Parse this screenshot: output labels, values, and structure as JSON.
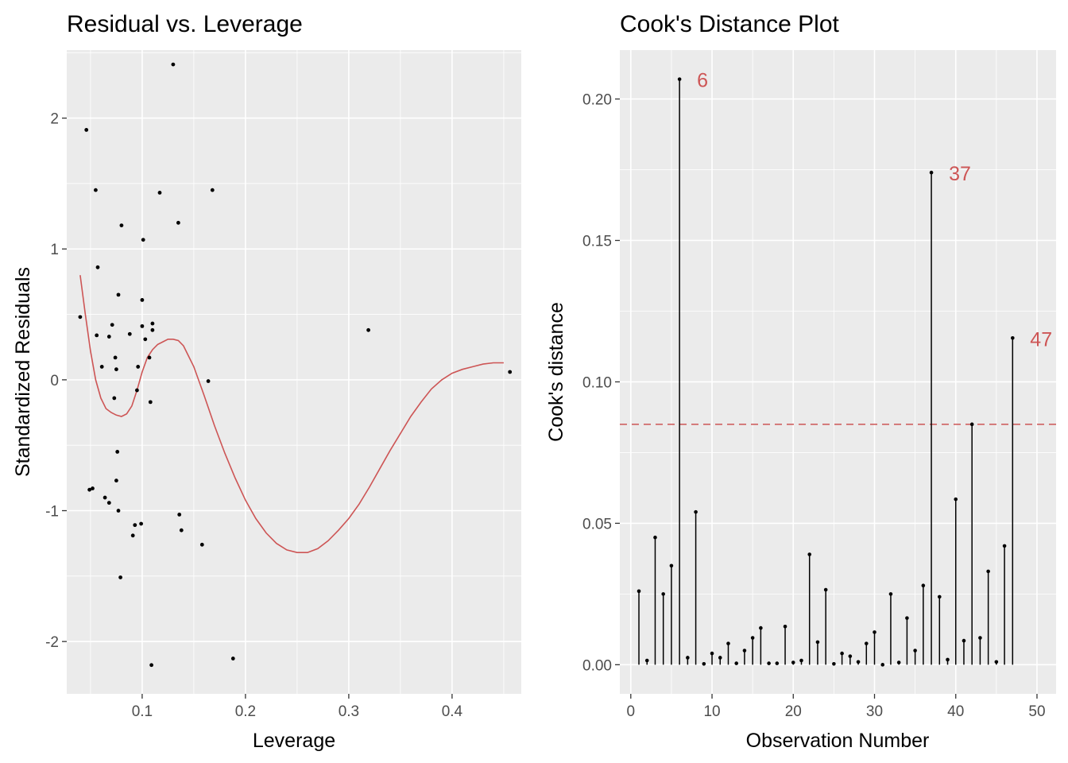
{
  "chart_data": [
    {
      "type": "scatter",
      "title": "Residual vs. Leverage",
      "xlabel": "Leverage",
      "ylabel": "Standardized Residuals",
      "xlim": [
        0.027,
        0.467
      ],
      "ylim": [
        -2.4,
        2.52
      ],
      "xticks": [
        0.1,
        0.2,
        0.3,
        0.4
      ],
      "xtick_labels": [
        "0.1",
        "0.2",
        "0.3",
        "0.4"
      ],
      "yticks": [
        -2,
        -1,
        0,
        1,
        2
      ],
      "ytick_labels": [
        "-2",
        "-1",
        "0",
        "1",
        "2"
      ],
      "grid": true,
      "background": "#EBEBEB",
      "point_color": "#000000",
      "smooth_color": "#CD5555",
      "points": [
        [
          0.04,
          0.48
        ],
        [
          0.046,
          1.91
        ],
        [
          0.049,
          -0.84
        ],
        [
          0.052,
          -0.83
        ],
        [
          0.055,
          1.45
        ],
        [
          0.056,
          0.34
        ],
        [
          0.057,
          0.86
        ],
        [
          0.061,
          0.1
        ],
        [
          0.064,
          -0.9
        ],
        [
          0.068,
          0.33
        ],
        [
          0.068,
          -0.94
        ],
        [
          0.071,
          0.42
        ],
        [
          0.073,
          -0.14
        ],
        [
          0.074,
          0.17
        ],
        [
          0.075,
          0.08
        ],
        [
          0.075,
          -0.77
        ],
        [
          0.076,
          -0.55
        ],
        [
          0.077,
          -1.0
        ],
        [
          0.077,
          0.65
        ],
        [
          0.079,
          -1.51
        ],
        [
          0.08,
          1.18
        ],
        [
          0.088,
          0.35
        ],
        [
          0.091,
          -1.19
        ],
        [
          0.093,
          -1.11
        ],
        [
          0.095,
          -0.08
        ],
        [
          0.096,
          0.1
        ],
        [
          0.099,
          -1.1
        ],
        [
          0.1,
          0.41
        ],
        [
          0.1,
          0.61
        ],
        [
          0.101,
          1.07
        ],
        [
          0.103,
          0.31
        ],
        [
          0.107,
          0.17
        ],
        [
          0.108,
          -0.17
        ],
        [
          0.11,
          0.43
        ],
        [
          0.11,
          0.38
        ],
        [
          0.109,
          -2.18
        ],
        [
          0.117,
          1.43
        ],
        [
          0.13,
          2.41
        ],
        [
          0.135,
          1.2
        ],
        [
          0.136,
          -1.03
        ],
        [
          0.138,
          -1.15
        ],
        [
          0.158,
          -1.26
        ],
        [
          0.164,
          -0.01
        ],
        [
          0.168,
          1.45
        ],
        [
          0.188,
          -2.13
        ],
        [
          0.319,
          0.38
        ],
        [
          0.456,
          0.06
        ]
      ],
      "smooth_line": [
        [
          0.04,
          0.8
        ],
        [
          0.045,
          0.5
        ],
        [
          0.05,
          0.22
        ],
        [
          0.055,
          0.0
        ],
        [
          0.06,
          -0.14
        ],
        [
          0.065,
          -0.22
        ],
        [
          0.07,
          -0.25
        ],
        [
          0.075,
          -0.27
        ],
        [
          0.08,
          -0.28
        ],
        [
          0.085,
          -0.26
        ],
        [
          0.09,
          -0.2
        ],
        [
          0.095,
          -0.08
        ],
        [
          0.1,
          0.06
        ],
        [
          0.105,
          0.17
        ],
        [
          0.11,
          0.23
        ],
        [
          0.115,
          0.27
        ],
        [
          0.12,
          0.29
        ],
        [
          0.125,
          0.31
        ],
        [
          0.13,
          0.31
        ],
        [
          0.135,
          0.3
        ],
        [
          0.14,
          0.26
        ],
        [
          0.15,
          0.1
        ],
        [
          0.16,
          -0.12
        ],
        [
          0.17,
          -0.35
        ],
        [
          0.18,
          -0.56
        ],
        [
          0.19,
          -0.75
        ],
        [
          0.2,
          -0.92
        ],
        [
          0.21,
          -1.06
        ],
        [
          0.22,
          -1.17
        ],
        [
          0.23,
          -1.25
        ],
        [
          0.24,
          -1.3
        ],
        [
          0.25,
          -1.32
        ],
        [
          0.26,
          -1.32
        ],
        [
          0.27,
          -1.29
        ],
        [
          0.28,
          -1.23
        ],
        [
          0.29,
          -1.15
        ],
        [
          0.3,
          -1.06
        ],
        [
          0.31,
          -0.95
        ],
        [
          0.32,
          -0.82
        ],
        [
          0.33,
          -0.68
        ],
        [
          0.34,
          -0.54
        ],
        [
          0.35,
          -0.41
        ],
        [
          0.36,
          -0.28
        ],
        [
          0.37,
          -0.17
        ],
        [
          0.38,
          -0.07
        ],
        [
          0.39,
          0.0
        ],
        [
          0.4,
          0.05
        ],
        [
          0.41,
          0.08
        ],
        [
          0.42,
          0.1
        ],
        [
          0.43,
          0.12
        ],
        [
          0.44,
          0.13
        ],
        [
          0.45,
          0.13
        ]
      ]
    },
    {
      "type": "bar",
      "title": "Cook's Distance Plot",
      "xlabel": "Observation Number",
      "ylabel": "Cook's distance",
      "xlim": [
        -1.35,
        52.35
      ],
      "ylim": [
        -0.0103,
        0.2173
      ],
      "xticks": [
        0,
        10,
        20,
        30,
        40,
        50
      ],
      "xtick_labels": [
        "0",
        "10",
        "20",
        "30",
        "40",
        "50"
      ],
      "yticks": [
        0.0,
        0.05,
        0.1,
        0.15,
        0.2
      ],
      "ytick_labels": [
        "0.00",
        "0.05",
        "0.10",
        "0.15",
        "0.20"
      ],
      "grid": true,
      "background": "#EBEBEB",
      "stem_color": "#000000",
      "threshold": 0.085,
      "threshold_color": "#CD5555",
      "annotation_color": "#CD5555",
      "observations": [
        1,
        2,
        3,
        4,
        5,
        6,
        7,
        8,
        9,
        10,
        11,
        12,
        13,
        14,
        15,
        16,
        17,
        18,
        19,
        20,
        21,
        22,
        23,
        24,
        25,
        26,
        27,
        28,
        29,
        30,
        31,
        32,
        33,
        34,
        35,
        36,
        37,
        38,
        39,
        40,
        41,
        42,
        43,
        44,
        45,
        46,
        47
      ],
      "values": [
        0.026,
        0.0015,
        0.045,
        0.025,
        0.035,
        0.207,
        0.0025,
        0.054,
        0.0003,
        0.004,
        0.0025,
        0.0075,
        0.0005,
        0.005,
        0.0095,
        0.013,
        0.0005,
        0.0005,
        0.0135,
        0.0008,
        0.0015,
        0.039,
        0.008,
        0.0265,
        0.0003,
        0.004,
        0.003,
        0.001,
        0.0075,
        0.0115,
        0.0,
        0.025,
        0.0008,
        0.0165,
        0.005,
        0.028,
        0.174,
        0.024,
        0.0018,
        0.0585,
        0.0085,
        0.085,
        0.0095,
        0.033,
        0.001,
        0.042,
        0.1155
      ],
      "annotations": [
        {
          "obs": 6,
          "value": 0.207,
          "label": "6"
        },
        {
          "obs": 37,
          "value": 0.174,
          "label": "37"
        },
        {
          "obs": 47,
          "value": 0.1155,
          "label": "47"
        }
      ]
    }
  ]
}
